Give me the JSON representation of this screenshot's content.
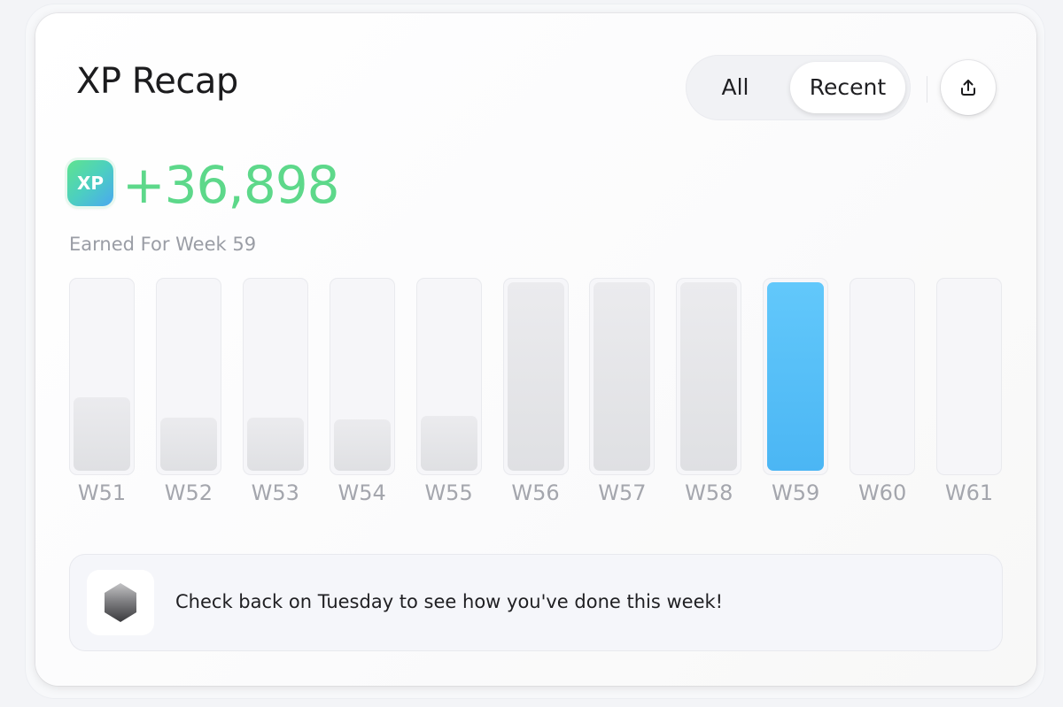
{
  "header": {
    "title": "XP Recap",
    "toggle": {
      "all_label": "All",
      "recent_label": "Recent",
      "selected": "Recent"
    },
    "share_icon": "share-upload-icon"
  },
  "summary": {
    "badge_label": "XP",
    "value": "+36,898",
    "subtitle": "Earned For Week 59"
  },
  "colors": {
    "accent_green": "#5dd88a",
    "active_bar": "#52bdf7",
    "inactive_bar": "#e2e3e6"
  },
  "chart_data": {
    "type": "bar",
    "categories": [
      "W51",
      "W52",
      "W53",
      "W54",
      "W55",
      "W56",
      "W57",
      "W58",
      "W59",
      "W60",
      "W61"
    ],
    "values": [
      39,
      28,
      28,
      27,
      29,
      100,
      100,
      100,
      100,
      0,
      0
    ],
    "highlighted": "W59",
    "ylim": [
      0,
      100
    ]
  },
  "notice": {
    "icon": "hexagon-icon",
    "text": "Check back on Tuesday to see how you've done this week!"
  }
}
